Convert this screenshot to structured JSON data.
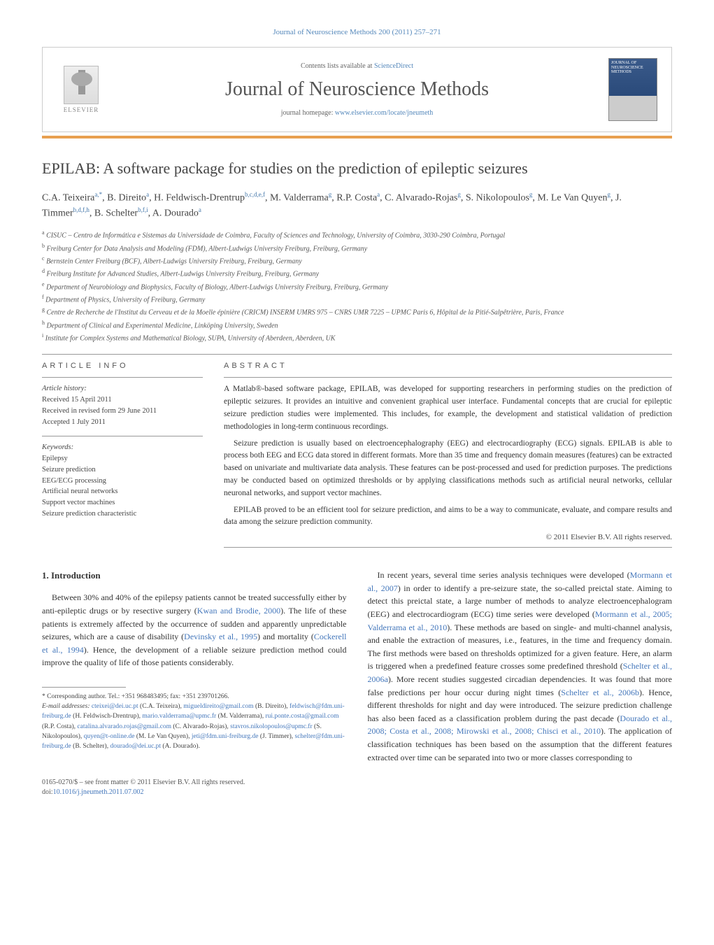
{
  "journal_ref": "Journal of Neuroscience Methods 200 (2011) 257–271",
  "header": {
    "contents_text": "Contents lists available at ",
    "contents_link": "ScienceDirect",
    "journal_name": "Journal of Neuroscience Methods",
    "homepage_label": "journal homepage: ",
    "homepage_url": "www.elsevier.com/locate/jneumeth",
    "publisher": "ELSEVIER",
    "cover_text": "JOURNAL OF NEUROSCIENCE METHODS"
  },
  "article": {
    "title": "EPILAB: A software package for studies on the prediction of epileptic seizures",
    "authors_html": "C.A. Teixeira<sup>a,*</sup>, B. Direito<sup>a</sup>, H. Feldwisch-Drentrup<sup>b,c,d,e,f</sup>, M. Valderrama<sup>g</sup>, R.P. Costa<sup>a</sup>, C. Alvarado-Rojas<sup>g</sup>, S. Nikolopoulos<sup>g</sup>, M. Le Van Quyen<sup>g</sup>, J. Timmer<sup>b,d,f,h</sup>, B. Schelter<sup>b,f,i</sup>, A. Dourado<sup>a</sup>",
    "affiliations": [
      {
        "sup": "a",
        "text": "CISUC – Centro de Informática e Sistemas da Universidade de Coimbra, Faculty of Sciences and Technology, University of Coimbra, 3030-290 Coimbra, Portugal"
      },
      {
        "sup": "b",
        "text": "Freiburg Center for Data Analysis and Modeling (FDM), Albert-Ludwigs University Freiburg, Freiburg, Germany"
      },
      {
        "sup": "c",
        "text": "Bernstein Center Freiburg (BCF), Albert-Ludwigs University Freiburg, Freiburg, Germany"
      },
      {
        "sup": "d",
        "text": "Freiburg Institute for Advanced Studies, Albert-Ludwigs University Freiburg, Freiburg, Germany"
      },
      {
        "sup": "e",
        "text": "Department of Neurobiology and Biophysics, Faculty of Biology, Albert-Ludwigs University Freiburg, Freiburg, Germany"
      },
      {
        "sup": "f",
        "text": "Department of Physics, University of Freiburg, Germany"
      },
      {
        "sup": "g",
        "text": "Centre de Recherche de l'Institut du Cerveau et de la Moelle épinière (CRICM) INSERM UMRS 975 – CNRS UMR 7225 – UPMC Paris 6, Hôpital de la Pitié-Salpêtrière, Paris, France"
      },
      {
        "sup": "h",
        "text": "Department of Clinical and Experimental Medicine, Linköping University, Sweden"
      },
      {
        "sup": "i",
        "text": "Institute for Complex Systems and Mathematical Biology, SUPA, University of Aberdeen, Aberdeen, UK"
      }
    ]
  },
  "article_info": {
    "header": "article info",
    "history_label": "Article history:",
    "received": "Received 15 April 2011",
    "revised": "Received in revised form 29 June 2011",
    "accepted": "Accepted 1 July 2011",
    "keywords_label": "Keywords:",
    "keywords": [
      "Epilepsy",
      "Seizure prediction",
      "EEG/ECG processing",
      "Artificial neural networks",
      "Support vector machines",
      "Seizure prediction characteristic"
    ]
  },
  "abstract": {
    "header": "abstract",
    "paragraphs": [
      "A Matlab®-based software package, EPILAB, was developed for supporting researchers in performing studies on the prediction of epileptic seizures. It provides an intuitive and convenient graphical user interface. Fundamental concepts that are crucial for epileptic seizure prediction studies were implemented. This includes, for example, the development and statistical validation of prediction methodologies in long-term continuous recordings.",
      "Seizure prediction is usually based on electroencephalography (EEG) and electrocardiography (ECG) signals. EPILAB is able to process both EEG and ECG data stored in different formats. More than 35 time and frequency domain measures (features) can be extracted based on univariate and multivariate data analysis. These features can be post-processed and used for prediction purposes. The predictions may be conducted based on optimized thresholds or by applying classifications methods such as artificial neural networks, cellular neuronal networks, and support vector machines.",
      "EPILAB proved to be an efficient tool for seizure prediction, and aims to be a way to communicate, evaluate, and compare results and data among the seizure prediction community."
    ],
    "copyright": "© 2011 Elsevier B.V. All rights reserved."
  },
  "body": {
    "intro_heading": "1. Introduction",
    "left_paragraphs": [
      "Between 30% and 40% of the epilepsy patients cannot be treated successfully either by anti-epileptic drugs or by resective surgery (<a href='#'>Kwan and Brodie, 2000</a>). The life of these patients is extremely affected by the occurrence of sudden and apparently unpredictable seizures, which are a cause of disability (<a href='#'>Devinsky et al., 1995</a>) and mortality (<a href='#'>Cockerell et al., 1994</a>). Hence, the development of a reliable seizure prediction method could improve the quality of life of those patients considerably."
    ],
    "right_paragraphs": [
      "In recent years, several time series analysis techniques were developed (<a href='#'>Mormann et al., 2007</a>) in order to identify a pre-seizure state, the so-called preictal state. Aiming to detect this preictal state, a large number of methods to analyze electroencephalogram (EEG) and electrocardiogram (ECG) time series were developed (<a href='#'>Mormann et al., 2005; Valderrama et al., 2010</a>). These methods are based on single- and multi-channel analysis, and enable the extraction of measures, i.e., features, in the time and frequency domain. The first methods were based on thresholds optimized for a given feature. Here, an alarm is triggered when a predefined feature crosses some predefined threshold (<a href='#'>Schelter et al., 2006a</a>). More recent studies suggested circadian dependencies. It was found that more false predictions per hour occur during night times (<a href='#'>Schelter et al., 2006b</a>). Hence, different thresholds for night and day were introduced. The seizure prediction challenge has also been faced as a classification problem during the past decade (<a href='#'>Dourado et al., 2008; Costa et al., 2008; Mirowski et al., 2008; Chisci et al., 2010</a>). The application of classification techniques has been based on the assumption that the different features extracted over time can be separated into two or more classes corresponding to"
    ]
  },
  "footnotes": {
    "corresponding": "* Corresponding author. Tel.: +351 968483495; fax: +351 239701266.",
    "email_label": "E-mail addresses:",
    "emails": [
      {
        "addr": "cteixei@dei.uc.pt",
        "who": "(C.A. Teixeira)"
      },
      {
        "addr": "migueldireito@gmail.com",
        "who": "(B. Direito)"
      },
      {
        "addr": "feldwisch@fdm.uni-freiburg.de",
        "who": "(H. Feldwisch-Drentrup)"
      },
      {
        "addr": "mario.valderrama@upmc.fr",
        "who": "(M. Valderrama)"
      },
      {
        "addr": "rui.ponte.costa@gmail.com",
        "who": "(R.P. Costa)"
      },
      {
        "addr": "catalina.alvarado.rojas@gmail.com",
        "who": "(C. Alvarado-Rojas)"
      },
      {
        "addr": "stavros.nikolopoulos@upmc.fr",
        "who": "(S. Nikolopoulos)"
      },
      {
        "addr": "quyen@t-online.de",
        "who": "(M. Le Van Quyen)"
      },
      {
        "addr": "jeti@fdm.uni-freiburg.de",
        "who": "(J. Timmer)"
      },
      {
        "addr": "schelter@fdm.uni-freiburg.de",
        "who": "(B. Schelter)"
      },
      {
        "addr": "dourado@dei.uc.pt",
        "who": "(A. Dourado)"
      }
    ]
  },
  "footer": {
    "issn": "0165-0270/$ – see front matter © 2011 Elsevier B.V. All rights reserved.",
    "doi_label": "doi:",
    "doi": "10.1016/j.jneumeth.2011.07.002"
  },
  "colors": {
    "link": "#4477bb",
    "orange_bar": "#e8a050",
    "text": "#333333",
    "muted": "#666666"
  }
}
